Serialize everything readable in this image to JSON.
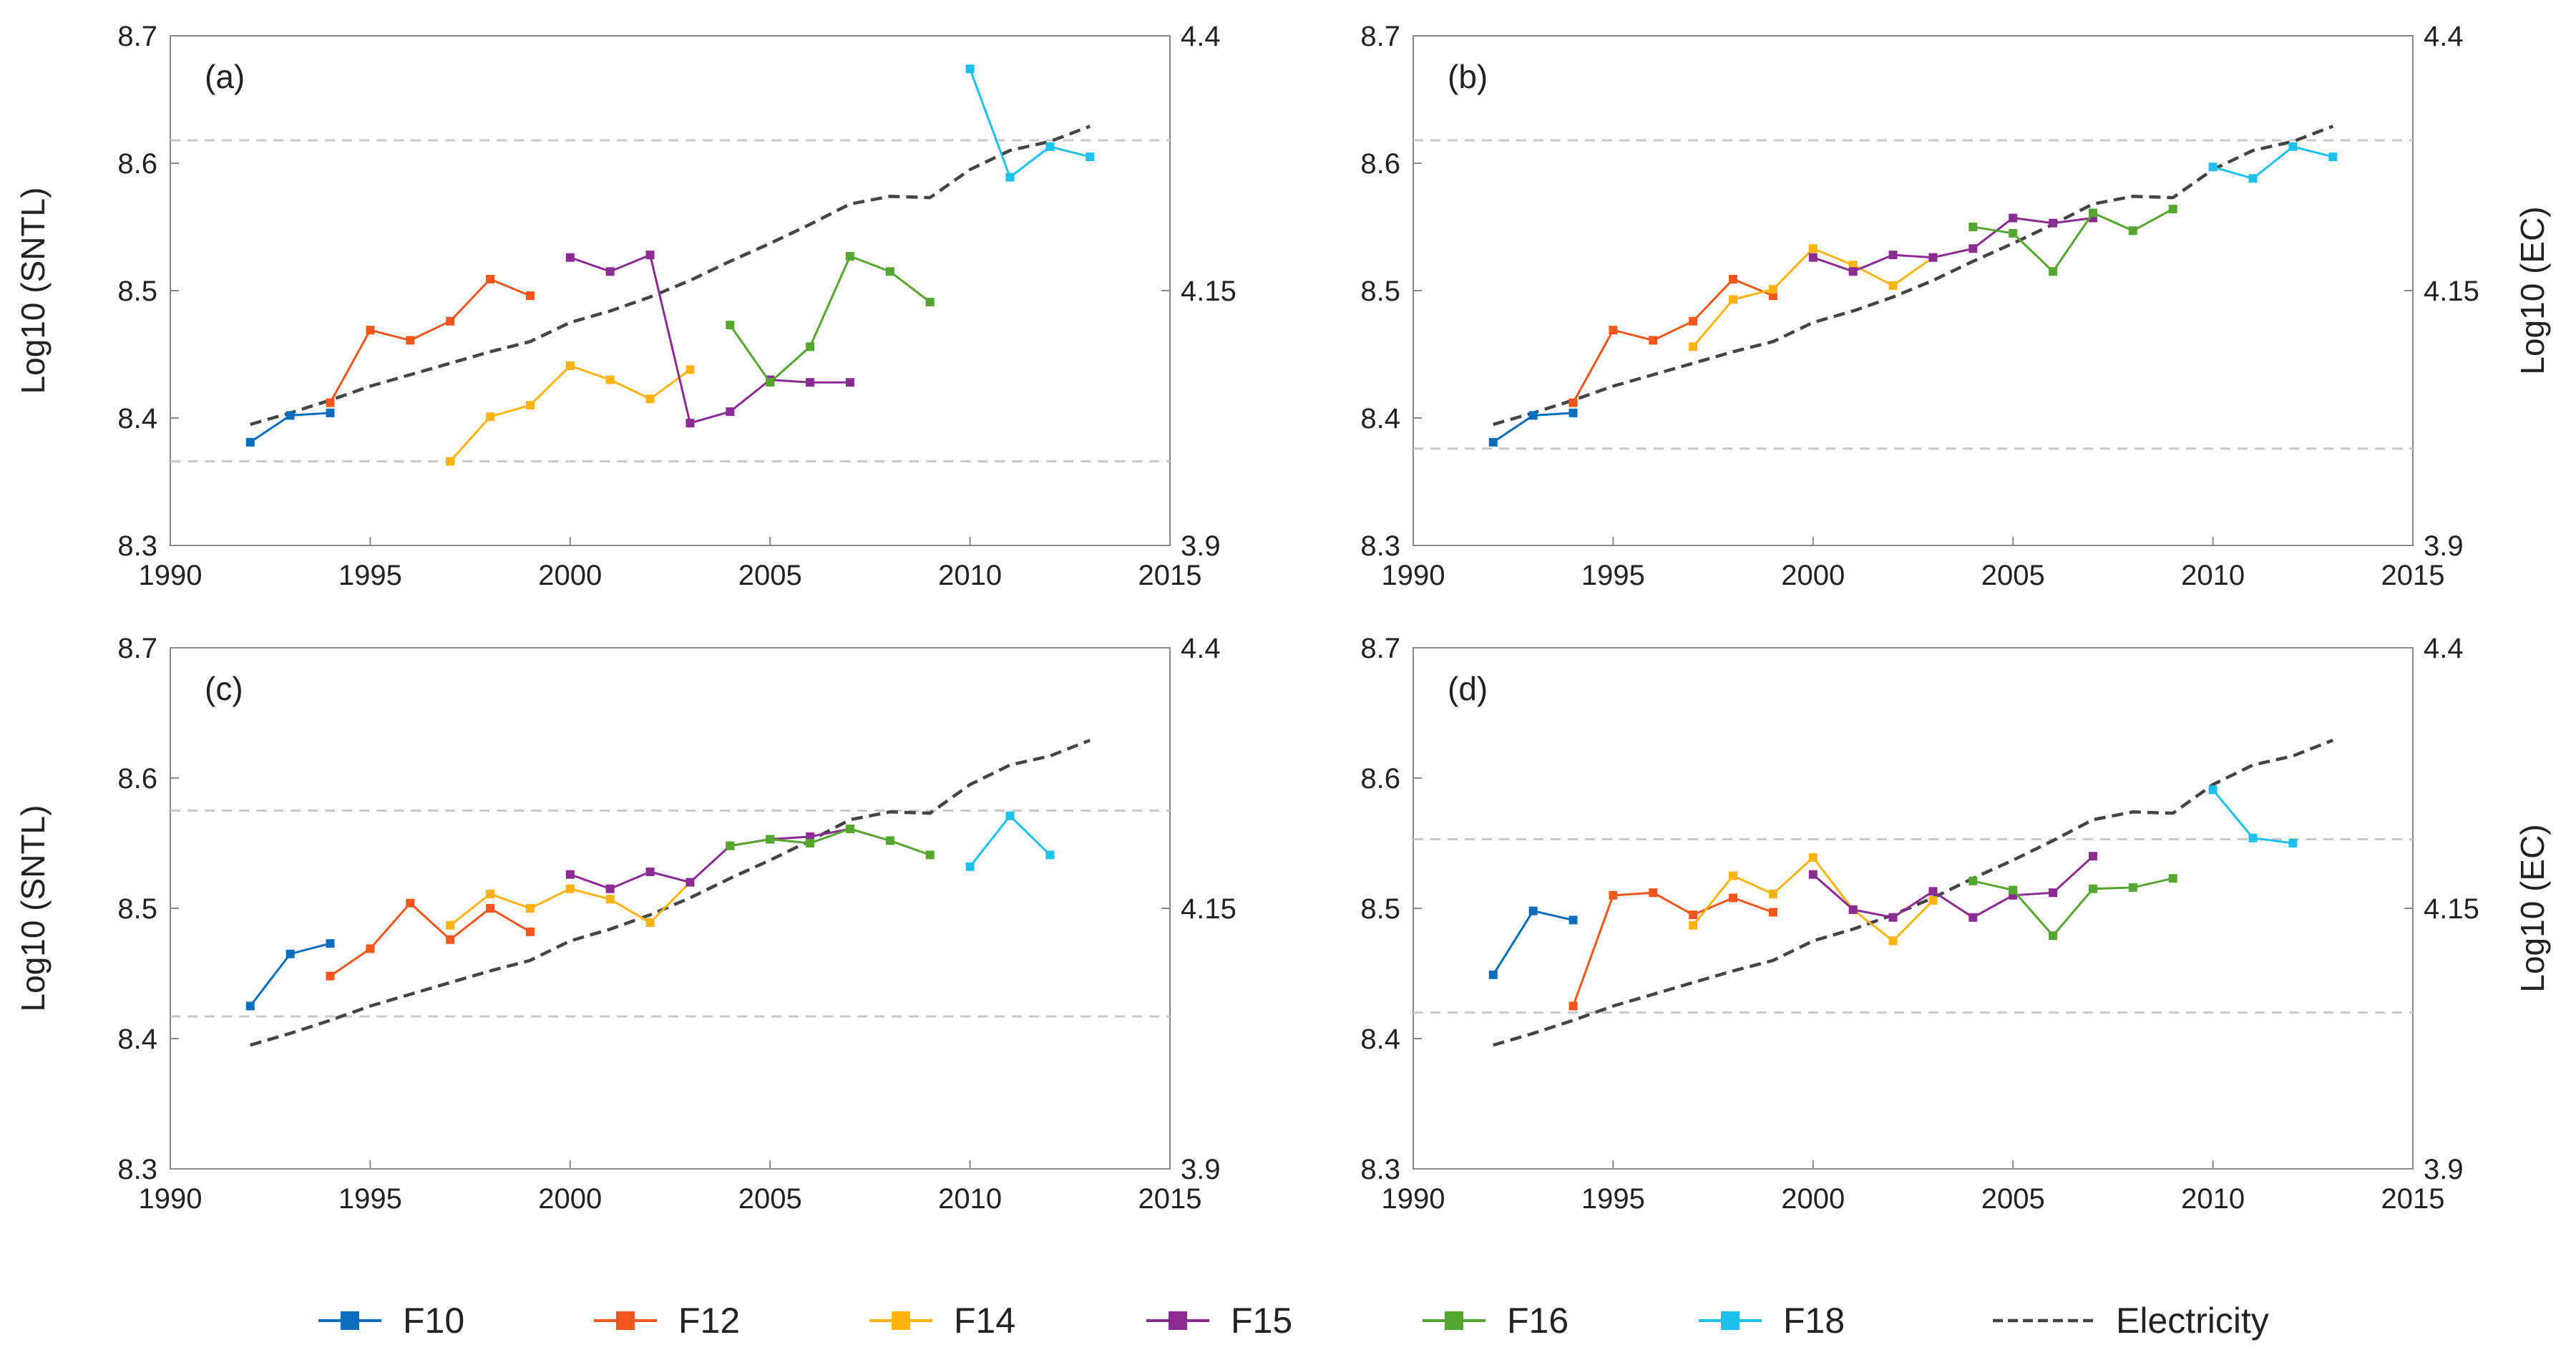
{
  "chart_data": [
    {
      "type": "line",
      "panel_label": "(a)",
      "ylabel_left": "Log10 (SNTL)",
      "ylabel_right": "",
      "xlim": [
        1990,
        2015
      ],
      "ylim_left": [
        8.3,
        8.7
      ],
      "ylim_right": [
        3.9,
        4.4
      ],
      "xticks": [
        "1990",
        "1995",
        "2000",
        "2005",
        "2010",
        "2015"
      ],
      "yticks_left": [
        "8.3",
        "8.4",
        "8.5",
        "8.6",
        "8.7"
      ],
      "yticks_right": [
        "3.9",
        "4.15",
        "4.4"
      ],
      "ref_lines": [
        8.618,
        8.366
      ],
      "series": [
        {
          "name": "F10",
          "x": [
            1992,
            1993,
            1994
          ],
          "y": [
            8.381,
            8.402,
            8.404
          ]
        },
        {
          "name": "F12",
          "x": [
            1994,
            1995,
            1996,
            1997,
            1998,
            1999
          ],
          "y": [
            8.412,
            8.469,
            8.461,
            8.476,
            8.509,
            8.496
          ]
        },
        {
          "name": "F14",
          "x": [
            1997,
            1998,
            1999,
            2000,
            2001,
            2002,
            2003
          ],
          "y": [
            8.366,
            8.401,
            8.41,
            8.441,
            8.43,
            8.415,
            8.438
          ]
        },
        {
          "name": "F15",
          "x": [
            2000,
            2001,
            2002,
            2003,
            2004,
            2005,
            2006,
            2007
          ],
          "y": [
            8.526,
            8.515,
            8.528,
            8.396,
            8.405,
            8.43,
            8.428,
            8.428
          ]
        },
        {
          "name": "F16",
          "x": [
            2004,
            2005,
            2006,
            2007,
            2008,
            2009
          ],
          "y": [
            8.473,
            8.428,
            8.456,
            8.527,
            8.515,
            8.491
          ]
        },
        {
          "name": "F18",
          "x": [
            2010,
            2011,
            2012,
            2013
          ],
          "y": [
            8.674,
            8.589,
            8.613,
            8.605
          ]
        }
      ],
      "electricity": {
        "name": "Electricity",
        "x": [
          1992,
          1993,
          1994,
          1995,
          1996,
          1997,
          1998,
          1999,
          2000,
          2001,
          2002,
          2003,
          2004,
          2005,
          2006,
          2007,
          2008,
          2009,
          2010,
          2011,
          2012,
          2013
        ],
        "y": [
          8.395,
          8.404,
          8.414,
          8.425,
          8.434,
          8.443,
          8.452,
          8.46,
          8.475,
          8.484,
          8.495,
          8.508,
          8.523,
          8.537,
          8.552,
          8.568,
          8.574,
          8.573,
          8.595,
          8.61,
          8.617,
          8.629
        ]
      }
    },
    {
      "type": "line",
      "panel_label": "(b)",
      "ylabel_left": "",
      "ylabel_right": "Log10 (EC)",
      "xlim": [
        1990,
        2015
      ],
      "ylim_left": [
        8.3,
        8.7
      ],
      "ylim_right": [
        3.9,
        4.4
      ],
      "xticks": [
        "1990",
        "1995",
        "2000",
        "2005",
        "2010",
        "2015"
      ],
      "yticks_left": [
        "8.3",
        "8.4",
        "8.5",
        "8.6",
        "8.7"
      ],
      "yticks_right": [
        "3.9",
        "4.15",
        "4.4"
      ],
      "ref_lines": [
        8.618,
        8.376
      ],
      "series": [
        {
          "name": "F10",
          "x": [
            1992,
            1993,
            1994
          ],
          "y": [
            8.381,
            8.402,
            8.404
          ]
        },
        {
          "name": "F12",
          "x": [
            1994,
            1995,
            1996,
            1997,
            1998,
            1999
          ],
          "y": [
            8.412,
            8.469,
            8.461,
            8.476,
            8.509,
            8.496
          ]
        },
        {
          "name": "F14",
          "x": [
            1997,
            1998,
            1999,
            2000,
            2001,
            2002,
            2003
          ],
          "y": [
            8.456,
            8.493,
            8.501,
            8.533,
            8.52,
            8.504,
            8.526
          ]
        },
        {
          "name": "F15",
          "x": [
            2000,
            2001,
            2002,
            2003,
            2004,
            2005,
            2006,
            2007
          ],
          "y": [
            8.526,
            8.515,
            8.528,
            8.526,
            8.533,
            8.557,
            8.553,
            8.557
          ]
        },
        {
          "name": "F16",
          "x": [
            2004,
            2005,
            2006,
            2007,
            2008,
            2009
          ],
          "y": [
            8.55,
            8.545,
            8.515,
            8.561,
            8.547,
            8.564
          ]
        },
        {
          "name": "F18",
          "x": [
            2010,
            2011,
            2012,
            2013
          ],
          "y": [
            8.597,
            8.588,
            8.613,
            8.605
          ]
        }
      ],
      "electricity": {
        "name": "Electricity",
        "x": [
          1992,
          1993,
          1994,
          1995,
          1996,
          1997,
          1998,
          1999,
          2000,
          2001,
          2002,
          2003,
          2004,
          2005,
          2006,
          2007,
          2008,
          2009,
          2010,
          2011,
          2012,
          2013
        ],
        "y": [
          8.395,
          8.404,
          8.414,
          8.425,
          8.434,
          8.443,
          8.452,
          8.46,
          8.475,
          8.484,
          8.495,
          8.508,
          8.523,
          8.537,
          8.552,
          8.568,
          8.574,
          8.573,
          8.595,
          8.61,
          8.617,
          8.629
        ]
      }
    },
    {
      "type": "line",
      "panel_label": "(c)",
      "ylabel_left": "Log10 (SNTL)",
      "ylabel_right": "",
      "xlim": [
        1990,
        2015
      ],
      "ylim_left": [
        8.3,
        8.7
      ],
      "ylim_right": [
        3.9,
        4.4
      ],
      "xticks": [
        "1990",
        "1995",
        "2000",
        "2005",
        "2010",
        "2015"
      ],
      "yticks_left": [
        "8.3",
        "8.4",
        "8.5",
        "8.6",
        "8.7"
      ],
      "yticks_right": [
        "3.9",
        "4.15",
        "4.4"
      ],
      "ref_lines": [
        8.575,
        8.417
      ],
      "series": [
        {
          "name": "F10",
          "x": [
            1992,
            1993,
            1994
          ],
          "y": [
            8.425,
            8.465,
            8.473
          ]
        },
        {
          "name": "F12",
          "x": [
            1994,
            1995,
            1996,
            1997,
            1998,
            1999
          ],
          "y": [
            8.448,
            8.469,
            8.504,
            8.476,
            8.5,
            8.482
          ]
        },
        {
          "name": "F14",
          "x": [
            1997,
            1998,
            1999,
            2000,
            2001,
            2002,
            2003
          ],
          "y": [
            8.487,
            8.511,
            8.5,
            8.515,
            8.507,
            8.489,
            8.52
          ]
        },
        {
          "name": "F15",
          "x": [
            2000,
            2001,
            2002,
            2003,
            2004,
            2005,
            2006,
            2007
          ],
          "y": [
            8.526,
            8.515,
            8.528,
            8.52,
            8.548,
            8.553,
            8.555,
            8.561
          ]
        },
        {
          "name": "F16",
          "x": [
            2004,
            2005,
            2006,
            2007,
            2008,
            2009
          ],
          "y": [
            8.548,
            8.553,
            8.55,
            8.561,
            8.552,
            8.541
          ]
        },
        {
          "name": "F18",
          "x": [
            2010,
            2011,
            2012
          ],
          "y": [
            8.532,
            8.571,
            8.541
          ]
        }
      ],
      "electricity": {
        "name": "Electricity",
        "x": [
          1992,
          1993,
          1994,
          1995,
          1996,
          1997,
          1998,
          1999,
          2000,
          2001,
          2002,
          2003,
          2004,
          2005,
          2006,
          2007,
          2008,
          2009,
          2010,
          2011,
          2012,
          2013
        ],
        "y": [
          8.395,
          8.404,
          8.414,
          8.425,
          8.434,
          8.443,
          8.452,
          8.46,
          8.475,
          8.484,
          8.495,
          8.508,
          8.523,
          8.537,
          8.552,
          8.568,
          8.574,
          8.573,
          8.595,
          8.61,
          8.617,
          8.629
        ]
      }
    },
    {
      "type": "line",
      "panel_label": "(d)",
      "ylabel_left": "",
      "ylabel_right": "Log10 (EC)",
      "xlim": [
        1990,
        2015
      ],
      "ylim_left": [
        8.3,
        8.7
      ],
      "ylim_right": [
        3.9,
        4.4
      ],
      "xticks": [
        "1990",
        "1995",
        "2000",
        "2005",
        "2010",
        "2015"
      ],
      "yticks_left": [
        "8.3",
        "8.4",
        "8.5",
        "8.6",
        "8.7"
      ],
      "yticks_right": [
        "3.9",
        "4.15",
        "4.4"
      ],
      "ref_lines": [
        8.553,
        8.42
      ],
      "series": [
        {
          "name": "F10",
          "x": [
            1992,
            1993,
            1994
          ],
          "y": [
            8.449,
            8.498,
            8.491
          ]
        },
        {
          "name": "F12",
          "x": [
            1994,
            1995,
            1996,
            1997,
            1998,
            1999
          ],
          "y": [
            8.425,
            8.51,
            8.512,
            8.495,
            8.508,
            8.497
          ]
        },
        {
          "name": "F14",
          "x": [
            1997,
            1998,
            1999,
            2000,
            2001,
            2002,
            2003
          ],
          "y": [
            8.487,
            8.525,
            8.511,
            8.539,
            8.499,
            8.475,
            8.506
          ]
        },
        {
          "name": "F15",
          "x": [
            2000,
            2001,
            2002,
            2003,
            2004,
            2005,
            2006,
            2007
          ],
          "y": [
            8.526,
            8.499,
            8.493,
            8.513,
            8.493,
            8.51,
            8.512,
            8.54
          ]
        },
        {
          "name": "F16",
          "x": [
            2004,
            2005,
            2006,
            2007,
            2008,
            2009
          ],
          "y": [
            8.521,
            8.514,
            8.479,
            8.515,
            8.516,
            8.523
          ]
        },
        {
          "name": "F18",
          "x": [
            2010,
            2011,
            2012
          ],
          "y": [
            8.591,
            8.554,
            8.55
          ]
        }
      ],
      "electricity": {
        "name": "Electricity",
        "x": [
          1992,
          1993,
          1994,
          1995,
          1996,
          1997,
          1998,
          1999,
          2000,
          2001,
          2002,
          2003,
          2004,
          2005,
          2006,
          2007,
          2008,
          2009,
          2010,
          2011,
          2012,
          2013
        ],
        "y": [
          8.395,
          8.404,
          8.414,
          8.425,
          8.434,
          8.443,
          8.452,
          8.46,
          8.475,
          8.484,
          8.495,
          8.508,
          8.523,
          8.537,
          8.552,
          8.568,
          8.574,
          8.573,
          8.595,
          8.61,
          8.617,
          8.629
        ]
      }
    }
  ],
  "colors": {
    "F10": "#0a6ebd",
    "F12": "#f2561d",
    "F14": "#ffb30f",
    "F15": "#8a2c91",
    "F16": "#55a630",
    "F18": "#1cc0ec",
    "Electricity": "#444444",
    "ref_line": "#c8c8c8",
    "axis": "#888888"
  },
  "legend": [
    {
      "name": "F10",
      "label": "F10",
      "style": "marker"
    },
    {
      "name": "F12",
      "label": "F12",
      "style": "marker"
    },
    {
      "name": "F14",
      "label": "F14",
      "style": "marker"
    },
    {
      "name": "F15",
      "label": "F15",
      "style": "marker"
    },
    {
      "name": "F16",
      "label": "F16",
      "style": "marker"
    },
    {
      "name": "F18",
      "label": "F18",
      "style": "marker"
    },
    {
      "name": "Electricity",
      "label": "Electricity",
      "style": "dashed"
    }
  ]
}
